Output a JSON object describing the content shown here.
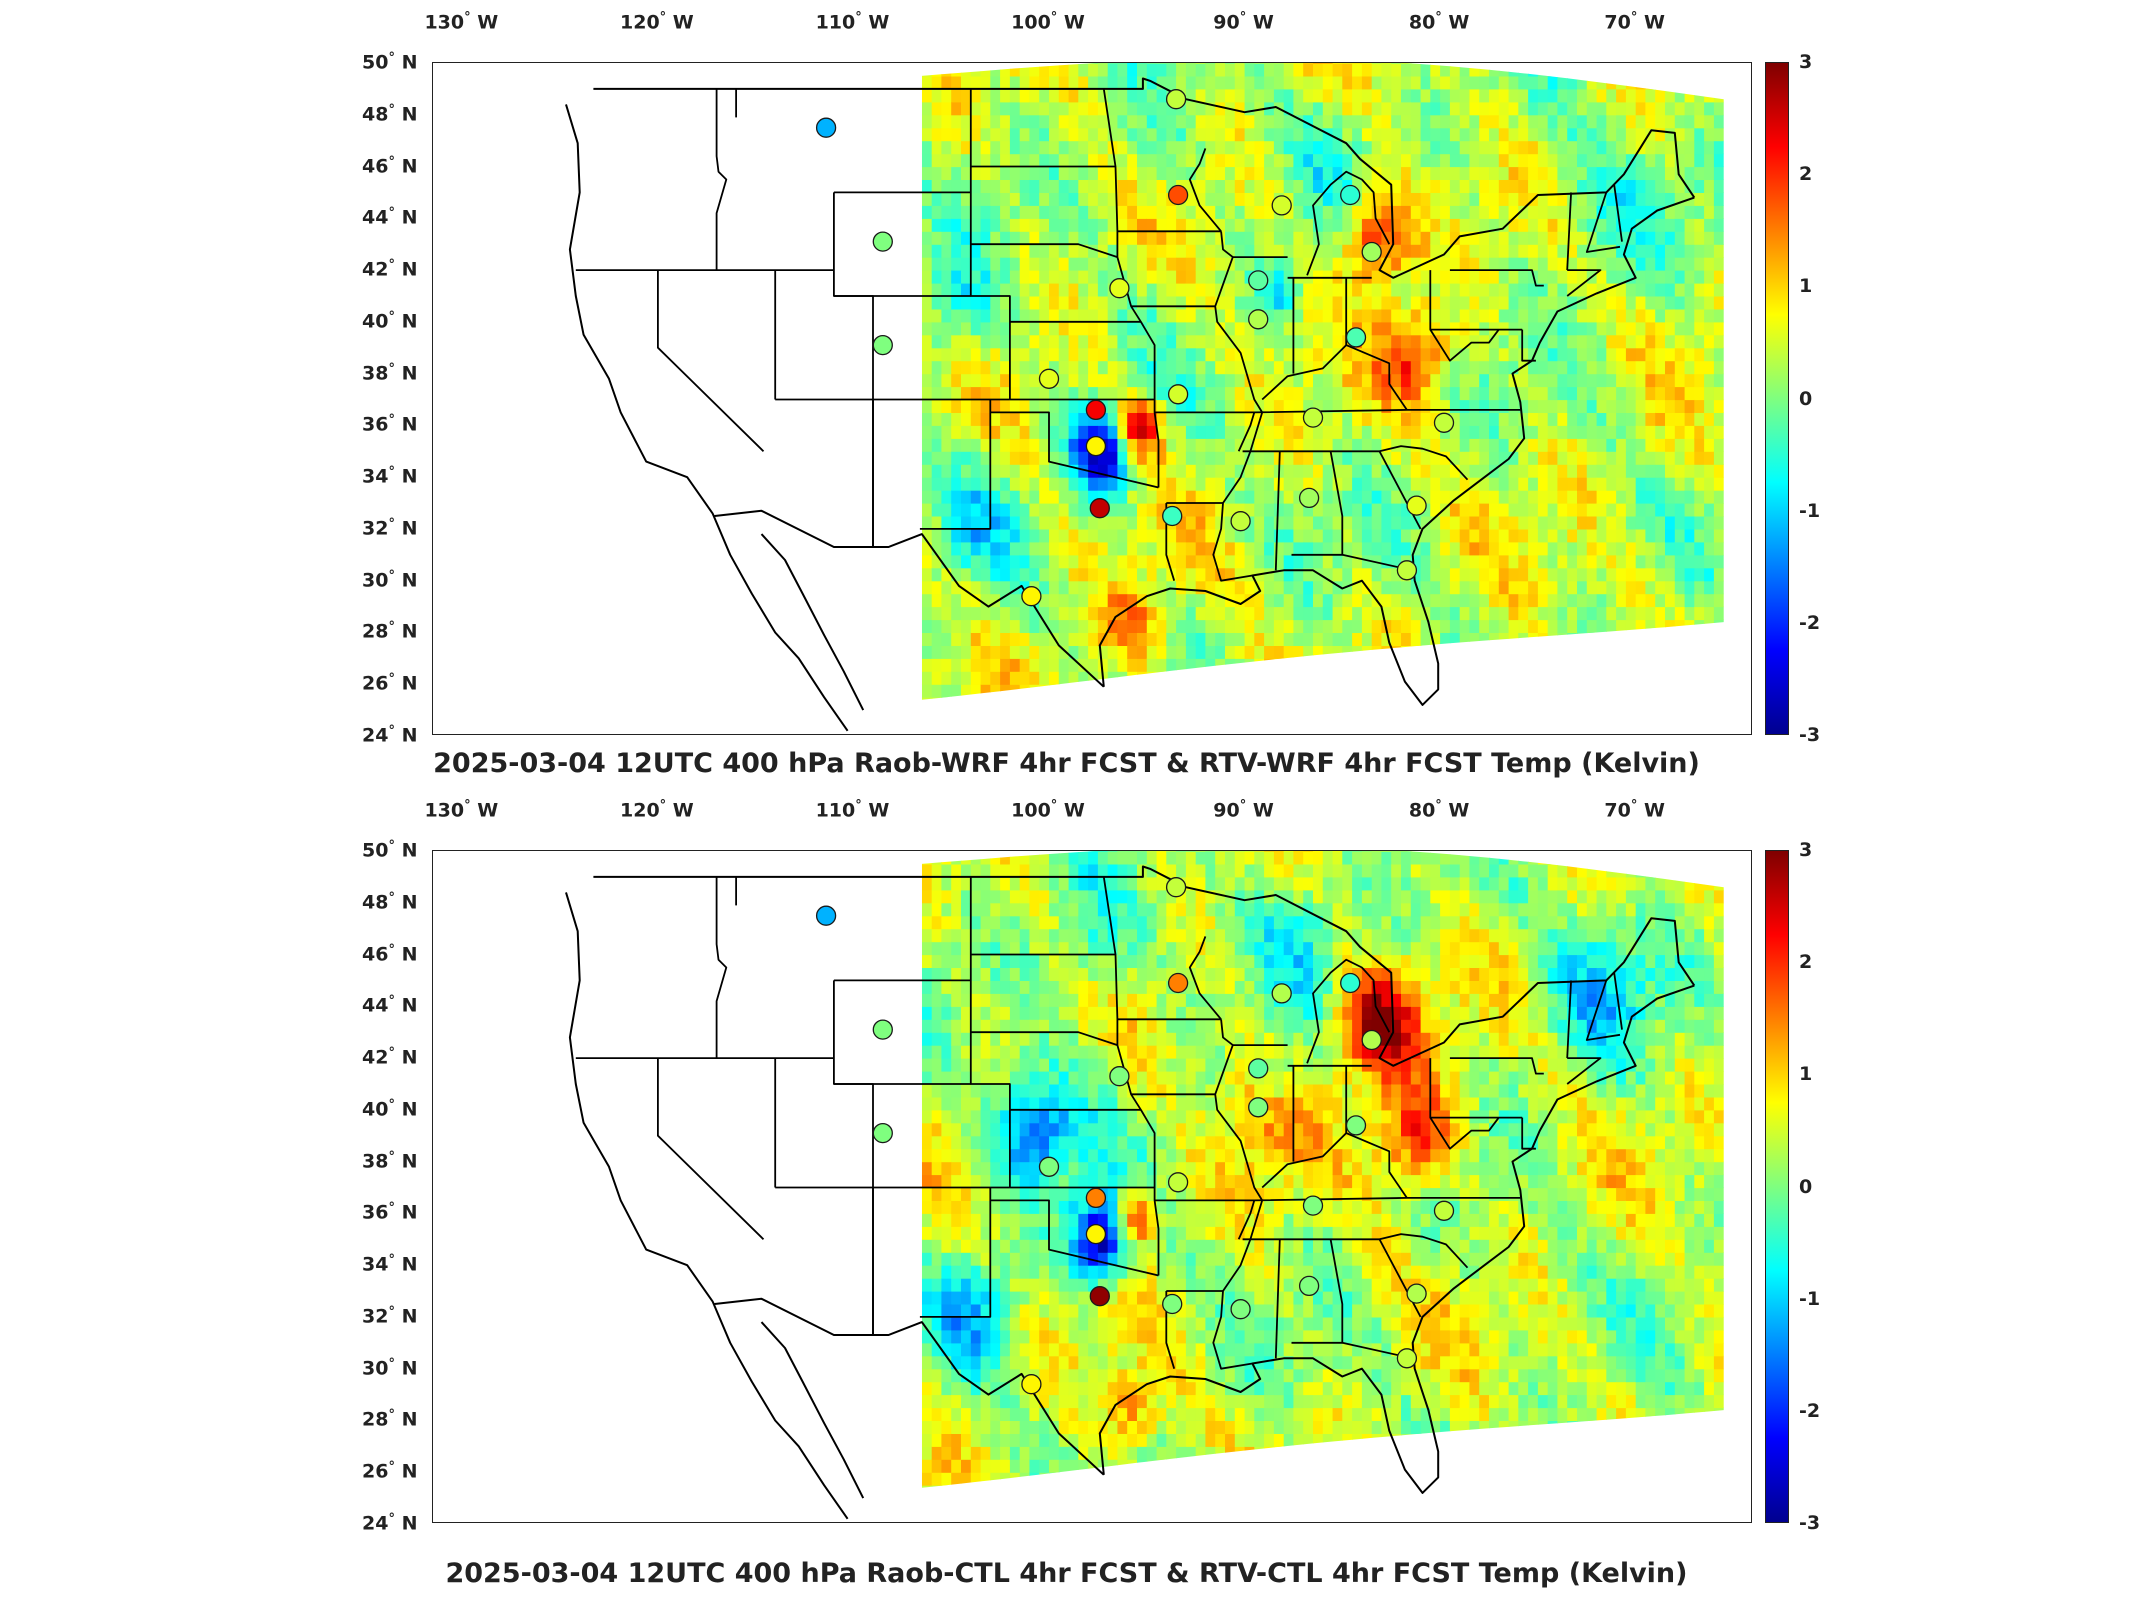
{
  "panels": [
    {
      "title": "2025-03-04 12UTC 400 hPa Raob-WRF 4hr FCST & RTV-WRF 4hr FCST Temp (Kelvin)",
      "stations": [
        {
          "lon": -111.4,
          "lat": 47.5,
          "value": -1.2
        },
        {
          "lon": -108.5,
          "lat": 43.1,
          "value": 0.0
        },
        {
          "lon": -108.5,
          "lat": 39.1,
          "value": 0.0
        },
        {
          "lon": -93.5,
          "lat": 48.6,
          "value": 0.4
        },
        {
          "lon": -93.4,
          "lat": 44.9,
          "value": 1.8
        },
        {
          "lon": -88.1,
          "lat": 44.5,
          "value": 0.5
        },
        {
          "lon": -84.6,
          "lat": 44.9,
          "value": -0.5
        },
        {
          "lon": -83.5,
          "lat": 42.7,
          "value": 0.2
        },
        {
          "lon": -89.3,
          "lat": 41.6,
          "value": -0.2
        },
        {
          "lon": -96.4,
          "lat": 41.3,
          "value": 0.6
        },
        {
          "lon": -89.3,
          "lat": 40.1,
          "value": 0.3
        },
        {
          "lon": -84.3,
          "lat": 39.4,
          "value": -0.3
        },
        {
          "lon": -100.0,
          "lat": 37.8,
          "value": 0.6
        },
        {
          "lon": -93.4,
          "lat": 37.2,
          "value": 0.5
        },
        {
          "lon": -97.6,
          "lat": 36.6,
          "value": 2.3
        },
        {
          "lon": -97.6,
          "lat": 35.2,
          "value": 0.8
        },
        {
          "lon": -97.4,
          "lat": 32.8,
          "value": 2.6
        },
        {
          "lon": -93.7,
          "lat": 32.5,
          "value": -0.4
        },
        {
          "lon": -90.2,
          "lat": 32.3,
          "value": 0.4
        },
        {
          "lon": -86.7,
          "lat": 33.2,
          "value": 0.2
        },
        {
          "lon": -86.5,
          "lat": 36.3,
          "value": 0.4
        },
        {
          "lon": -79.8,
          "lat": 36.1,
          "value": 0.4
        },
        {
          "lon": -81.2,
          "lat": 32.9,
          "value": 0.6
        },
        {
          "lon": -100.9,
          "lat": 29.4,
          "value": 0.8
        },
        {
          "lon": -81.7,
          "lat": 30.4,
          "value": 0.4
        }
      ]
    },
    {
      "title": "2025-03-04 12UTC 400 hPa Raob-CTL 4hr FCST & RTV-CTL 4hr FCST Temp (Kelvin)",
      "stations": [
        {
          "lon": -111.4,
          "lat": 47.5,
          "value": -1.2
        },
        {
          "lon": -108.5,
          "lat": 43.1,
          "value": 0.0
        },
        {
          "lon": -108.5,
          "lat": 39.1,
          "value": 0.0
        },
        {
          "lon": -93.5,
          "lat": 48.6,
          "value": 0.4
        },
        {
          "lon": -93.4,
          "lat": 44.9,
          "value": 1.5
        },
        {
          "lon": -88.1,
          "lat": 44.5,
          "value": 0.3
        },
        {
          "lon": -84.6,
          "lat": 44.9,
          "value": -0.5
        },
        {
          "lon": -83.5,
          "lat": 42.7,
          "value": 0.3
        },
        {
          "lon": -89.3,
          "lat": 41.6,
          "value": -0.2
        },
        {
          "lon": -96.4,
          "lat": 41.3,
          "value": 0.0
        },
        {
          "lon": -89.3,
          "lat": 40.1,
          "value": 0.0
        },
        {
          "lon": -84.3,
          "lat": 39.4,
          "value": 0.0
        },
        {
          "lon": -100.0,
          "lat": 37.8,
          "value": 0.0
        },
        {
          "lon": -93.4,
          "lat": 37.2,
          "value": 0.4
        },
        {
          "lon": -97.6,
          "lat": 36.6,
          "value": 1.5
        },
        {
          "lon": -97.6,
          "lat": 35.2,
          "value": 0.8
        },
        {
          "lon": -97.4,
          "lat": 32.8,
          "value": 2.9
        },
        {
          "lon": -93.7,
          "lat": 32.5,
          "value": 0.0
        },
        {
          "lon": -90.2,
          "lat": 32.3,
          "value": 0.0
        },
        {
          "lon": -86.7,
          "lat": 33.2,
          "value": 0.0
        },
        {
          "lon": -86.5,
          "lat": 36.3,
          "value": 0.0
        },
        {
          "lon": -79.8,
          "lat": 36.1,
          "value": 0.4
        },
        {
          "lon": -81.2,
          "lat": 32.9,
          "value": 0.3
        },
        {
          "lon": -100.9,
          "lat": 29.4,
          "value": 0.8
        },
        {
          "lon": -81.7,
          "lat": 30.4,
          "value": 0.4
        }
      ]
    }
  ],
  "lon_ticks": [
    {
      "deg": -130,
      "text": "130"
    },
    {
      "deg": -120,
      "text": "120"
    },
    {
      "deg": -110,
      "text": "110"
    },
    {
      "deg": -100,
      "text": "100"
    },
    {
      "deg": -90,
      "text": "90"
    },
    {
      "deg": -80,
      "text": "80"
    },
    {
      "deg": -70,
      "text": "70"
    }
  ],
  "lon_suffix": "W",
  "lat_ticks": [
    {
      "deg": 50,
      "text": "50"
    },
    {
      "deg": 48,
      "text": "48"
    },
    {
      "deg": 46,
      "text": "46"
    },
    {
      "deg": 44,
      "text": "44"
    },
    {
      "deg": 42,
      "text": "42"
    },
    {
      "deg": 40,
      "text": "40"
    },
    {
      "deg": 38,
      "text": "38"
    },
    {
      "deg": 36,
      "text": "36"
    },
    {
      "deg": 34,
      "text": "34"
    },
    {
      "deg": 32,
      "text": "32"
    },
    {
      "deg": 30,
      "text": "30"
    },
    {
      "deg": 28,
      "text": "28"
    },
    {
      "deg": 26,
      "text": "26"
    },
    {
      "deg": 24,
      "text": "24"
    }
  ],
  "lat_suffix": "N",
  "degree_symbol": "°",
  "colorbar": {
    "min": -3,
    "max": 3,
    "ticks": [
      {
        "value": 3,
        "text": "3"
      },
      {
        "value": 2,
        "text": "2"
      },
      {
        "value": 1,
        "text": "1"
      },
      {
        "value": 0,
        "text": "0"
      },
      {
        "value": -1,
        "text": "-1"
      },
      {
        "value": -2,
        "text": "-2"
      },
      {
        "value": -3,
        "text": "-3"
      }
    ],
    "colors": [
      "#00008f",
      "#0000ff",
      "#007fff",
      "#00ffff",
      "#7fff7f",
      "#ffff00",
      "#ff7f00",
      "#ff0000",
      "#7f0000"
    ]
  },
  "domain_swath": {
    "lon_west": -106.5,
    "lon_east": -65.5,
    "lat_south": 25.5,
    "lat_north": 49.5
  }
}
